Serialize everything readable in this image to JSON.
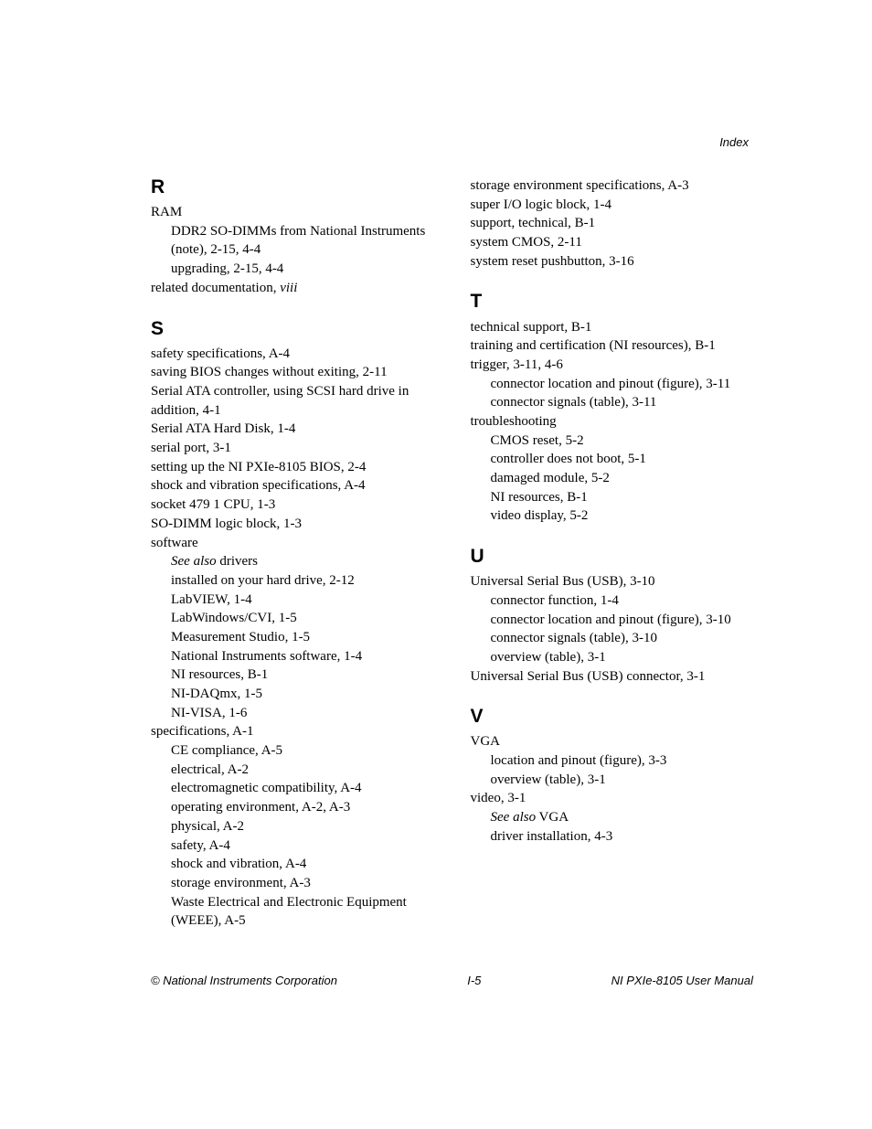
{
  "header": {
    "right": "Index"
  },
  "footer": {
    "left": "© National Instruments Corporation",
    "center": "I-5",
    "right": "NI PXIe-8105 User Manual"
  },
  "left_column": [
    {
      "letter": "R",
      "lines": [
        {
          "level": 0,
          "text": "RAM"
        },
        {
          "level": 1,
          "text": "DDR2 SO-DIMMs from National Instruments (note), 2-15, 4-4"
        },
        {
          "level": 1,
          "text": "upgrading, 2-15, 4-4"
        },
        {
          "level": 0,
          "text_parts": [
            {
              "t": "related documentation, "
            },
            {
              "t": "viii",
              "italic": true
            }
          ]
        }
      ]
    },
    {
      "letter": "S",
      "lines": [
        {
          "level": 0,
          "text": "safety specifications, A-4"
        },
        {
          "level": 0,
          "text": "saving BIOS changes without exiting, 2-11"
        },
        {
          "level": 0,
          "text": "Serial ATA controller, using SCSI hard drive in addition, 4-1"
        },
        {
          "level": 0,
          "text": "Serial ATA Hard Disk, 1-4"
        },
        {
          "level": 0,
          "text": "serial port, 3-1"
        },
        {
          "level": 0,
          "text": "setting up the NI PXIe-8105 BIOS, 2-4"
        },
        {
          "level": 0,
          "text": "shock and vibration specifications, A-4"
        },
        {
          "level": 0,
          "text": "socket 479 1 CPU, 1-3"
        },
        {
          "level": 0,
          "text": "SO-DIMM logic block, 1-3"
        },
        {
          "level": 0,
          "text": "software"
        },
        {
          "level": 1,
          "text_parts": [
            {
              "t": "See also",
              "italic": true
            },
            {
              "t": " drivers"
            }
          ]
        },
        {
          "level": 1,
          "text": "installed on your hard drive, 2-12"
        },
        {
          "level": 1,
          "text": "LabVIEW, 1-4"
        },
        {
          "level": 1,
          "text": "LabWindows/CVI, 1-5"
        },
        {
          "level": 1,
          "text": "Measurement Studio, 1-5"
        },
        {
          "level": 1,
          "text": "National Instruments software, 1-4"
        },
        {
          "level": 1,
          "text": "NI resources, B-1"
        },
        {
          "level": 1,
          "text": "NI-DAQmx, 1-5"
        },
        {
          "level": 1,
          "text": "NI-VISA, 1-6"
        },
        {
          "level": 0,
          "text": "specifications, A-1"
        },
        {
          "level": 1,
          "text": "CE compliance, A-5"
        },
        {
          "level": 1,
          "text": "electrical, A-2"
        },
        {
          "level": 1,
          "text": "electromagnetic compatibility, A-4"
        },
        {
          "level": 1,
          "text": "operating environment, A-2, A-3"
        },
        {
          "level": 1,
          "text": "physical, A-2"
        },
        {
          "level": 1,
          "text": "safety, A-4"
        },
        {
          "level": 1,
          "text": "shock and vibration, A-4"
        },
        {
          "level": 1,
          "text": "storage environment, A-3"
        },
        {
          "level": 1,
          "text": "Waste Electrical and Electronic Equipment (WEEE), A-5"
        }
      ]
    }
  ],
  "right_column": [
    {
      "letter": "",
      "lines": [
        {
          "level": 0,
          "text": "storage environment specifications, A-3"
        },
        {
          "level": 0,
          "text": "super I/O logic block, 1-4"
        },
        {
          "level": 0,
          "text": "support, technical, B-1"
        },
        {
          "level": 0,
          "text": "system CMOS, 2-11"
        },
        {
          "level": 0,
          "text": "system reset pushbutton, 3-16"
        }
      ]
    },
    {
      "letter": "T",
      "lines": [
        {
          "level": 0,
          "text": "technical support, B-1"
        },
        {
          "level": 0,
          "text": "training and certification (NI resources), B-1"
        },
        {
          "level": 0,
          "text": "trigger, 3-11, 4-6"
        },
        {
          "level": 1,
          "text": "connector location and pinout (figure), 3-11"
        },
        {
          "level": 1,
          "text": "connector signals (table), 3-11"
        },
        {
          "level": 0,
          "text": "troubleshooting"
        },
        {
          "level": 1,
          "text": "CMOS reset, 5-2"
        },
        {
          "level": 1,
          "text": "controller does not boot, 5-1"
        },
        {
          "level": 1,
          "text": "damaged module, 5-2"
        },
        {
          "level": 1,
          "text": "NI resources, B-1"
        },
        {
          "level": 1,
          "text": "video display, 5-2"
        }
      ]
    },
    {
      "letter": "U",
      "lines": [
        {
          "level": 0,
          "text": "Universal Serial Bus (USB), 3-10"
        },
        {
          "level": 1,
          "text": "connector function, 1-4"
        },
        {
          "level": 1,
          "text": "connector location and pinout (figure), 3-10"
        },
        {
          "level": 1,
          "text": "connector signals (table), 3-10"
        },
        {
          "level": 1,
          "text": "overview (table), 3-1"
        },
        {
          "level": 0,
          "text": "Universal Serial Bus (USB) connector, 3-1"
        }
      ]
    },
    {
      "letter": "V",
      "lines": [
        {
          "level": 0,
          "text": "VGA"
        },
        {
          "level": 1,
          "text": "location and pinout (figure), 3-3"
        },
        {
          "level": 1,
          "text": "overview (table), 3-1"
        },
        {
          "level": 0,
          "text": "video, 3-1"
        },
        {
          "level": 1,
          "text_parts": [
            {
              "t": "See also",
              "italic": true
            },
            {
              "t": " VGA"
            }
          ]
        },
        {
          "level": 1,
          "text": "driver installation, 4-3"
        }
      ]
    }
  ]
}
